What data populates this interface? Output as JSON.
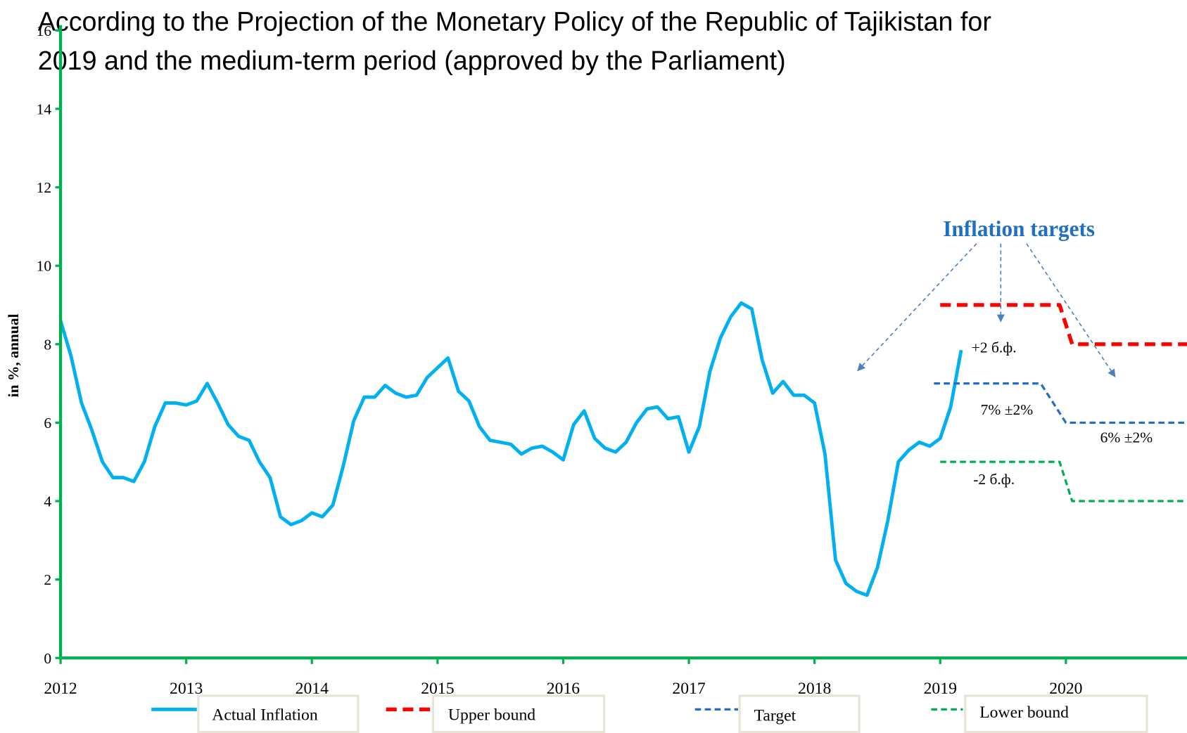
{
  "chart_data": {
    "type": "line",
    "title": [
      "According to the Projection of the Monetary Policy of the Republic of Tajikistan for",
      "2019 and the medium-term period (approved by the Parliament)"
    ],
    "ylabel": "in %, annual",
    "xlim": [
      2012,
      2021
    ],
    "ylim": [
      0,
      16
    ],
    "xticks": [
      2012,
      2013,
      2014,
      2015,
      2016,
      2017,
      2018,
      2019,
      2020
    ],
    "yticks": [
      0,
      2,
      4,
      6,
      8,
      10,
      12,
      14,
      16
    ],
    "series": [
      {
        "name": "Actual Inflation",
        "color": "#00b0f0",
        "style": "solid",
        "x": [
          2012,
          2012.083,
          2012.167,
          2012.25,
          2012.333,
          2012.417,
          2012.5,
          2012.583,
          2012.667,
          2012.75,
          2012.833,
          2012.917,
          2013,
          2013.083,
          2013.167,
          2013.25,
          2013.333,
          2013.417,
          2013.5,
          2013.583,
          2013.667,
          2013.75,
          2013.833,
          2013.917,
          2014,
          2014.083,
          2014.167,
          2014.25,
          2014.333,
          2014.417,
          2014.5,
          2014.583,
          2014.667,
          2014.75,
          2014.833,
          2014.917,
          2015,
          2015.083,
          2015.167,
          2015.25,
          2015.333,
          2015.417,
          2015.5,
          2015.583,
          2015.667,
          2015.75,
          2015.833,
          2015.917,
          2016,
          2016.083,
          2016.167,
          2016.25,
          2016.333,
          2016.417,
          2016.5,
          2016.583,
          2016.667,
          2016.75,
          2016.833,
          2016.917,
          2017,
          2017.083,
          2017.167,
          2017.25,
          2017.333,
          2017.417,
          2017.5,
          2017.583,
          2017.667,
          2017.75,
          2017.833,
          2017.917,
          2018,
          2018.083,
          2018.167,
          2018.25,
          2018.333,
          2018.417,
          2018.5,
          2018.583,
          2018.667,
          2018.75,
          2018.833,
          2018.917,
          2019,
          2019.083,
          2019.167
        ],
        "values": [
          8.6,
          7.7,
          6.5,
          5.8,
          5.0,
          4.6,
          4.6,
          4.5,
          5.0,
          5.9,
          6.5,
          6.5,
          6.45,
          6.55,
          7.0,
          6.5,
          5.95,
          5.65,
          5.55,
          5.0,
          4.6,
          3.6,
          3.4,
          3.5,
          3.7,
          3.6,
          3.9,
          4.9,
          6.05,
          6.65,
          6.65,
          6.95,
          6.75,
          6.65,
          6.7,
          7.15,
          7.4,
          7.65,
          6.8,
          6.55,
          5.9,
          5.55,
          5.5,
          5.45,
          5.2,
          5.35,
          5.4,
          5.25,
          5.05,
          5.95,
          6.3,
          5.6,
          5.35,
          5.25,
          5.5,
          6.0,
          6.35,
          6.4,
          6.1,
          6.15,
          5.25,
          5.9,
          7.3,
          8.15,
          8.7,
          9.05,
          8.9,
          7.6,
          6.75,
          7.05,
          6.7,
          6.7,
          6.5,
          5.2,
          2.5,
          1.9,
          1.7,
          1.6,
          2.3,
          3.5,
          5.0,
          5.3,
          5.5,
          5.4,
          5.6,
          6.4,
          7.85
        ]
      },
      {
        "name": "Upper bound",
        "color": "#ff0000",
        "style": "dash-thick",
        "x": [
          2019,
          2019.95,
          2020.05,
          2021
        ],
        "values": [
          9,
          9,
          8,
          8
        ]
      },
      {
        "name": "Target",
        "color": "#1f6fc5",
        "style": "dash",
        "x": [
          2018.95,
          2019.8,
          2020.0,
          2021
        ],
        "values": [
          7,
          7,
          6,
          6
        ]
      },
      {
        "name": "Lower bound",
        "color": "#00b050",
        "style": "dash",
        "x": [
          2019,
          2019.95,
          2020.05,
          2021
        ],
        "values": [
          5,
          5,
          4,
          4
        ]
      }
    ],
    "annotations": [
      "Inflation targets",
      "+2 б.ф.",
      "7% ±2%",
      "6% ±2%",
      "-2 б.ф."
    ]
  }
}
